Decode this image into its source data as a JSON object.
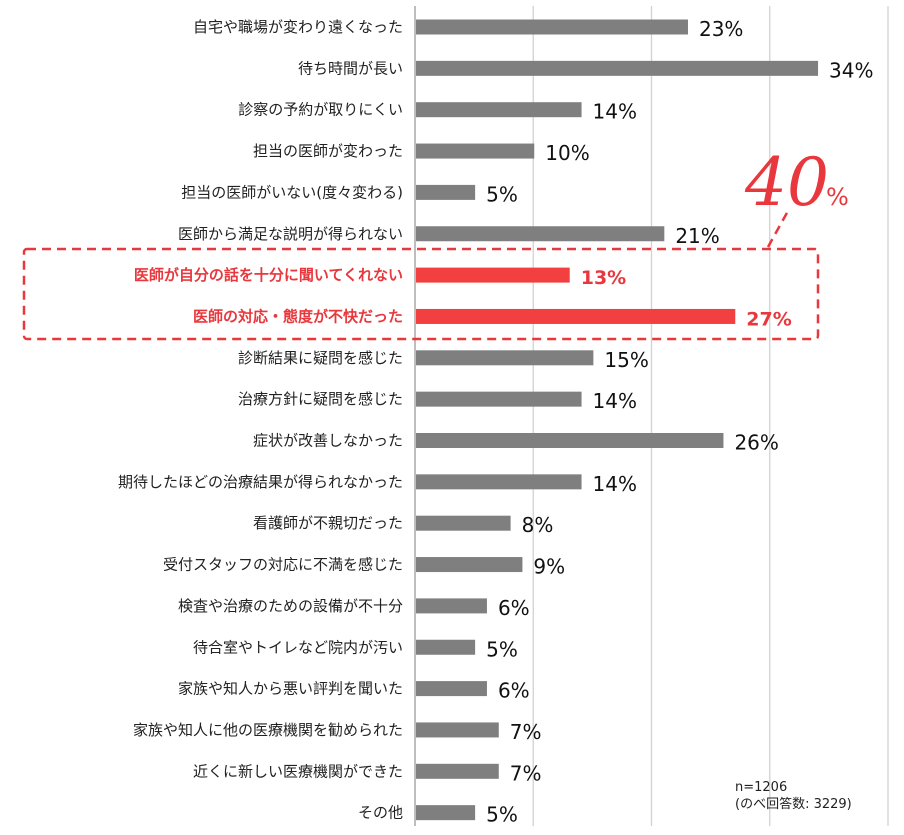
{
  "chart_data": {
    "type": "bar",
    "orientation": "horizontal",
    "categories": [
      "自宅や職場が変わり遠くなった",
      "待ち時間が長い",
      "診察の予約が取りにくい",
      "担当の医師が変わった",
      "担当の医師がいない(度々変わる)",
      "医師から満足な説明が得られない",
      "医師が自分の話を十分に聞いてくれない",
      "医師の対応・態度が不快だった",
      "診断結果に疑問を感じた",
      "治療方針に疑問を感じた",
      "症状が改善しなかった",
      "期待したほどの治療結果が得られなかった",
      "看護師が不親切だった",
      "受付スタッフの対応に不満を感じた",
      "検査や治療のための設備が不十分",
      "待合室やトイレなど院内が汚い",
      "家族や知人から悪い評判を聞いた",
      "家族や知人に他の医療機関を勧められた",
      "近くに新しい医療機関ができた",
      "その他"
    ],
    "values": [
      23,
      34,
      14,
      10,
      5,
      21,
      13,
      27,
      15,
      14,
      26,
      14,
      8,
      9,
      6,
      5,
      6,
      7,
      7,
      5
    ],
    "value_labels": [
      "23%",
      "34%",
      "14%",
      "10%",
      "5%",
      "21%",
      "13%",
      "27%",
      "15%",
      "14%",
      "26%",
      "14%",
      "8%",
      "9%",
      "6%",
      "5%",
      "6%",
      "7%",
      "7%",
      "5%"
    ],
    "highlighted": [
      6,
      7
    ],
    "xlim": [
      0,
      40
    ],
    "grid": true,
    "title": "",
    "xlabel": "",
    "ylabel": "",
    "annotation": {
      "number": "40",
      "unit": "%"
    },
    "note_lines": [
      "n=1206",
      "(のべ回答数: 3229)"
    ],
    "colors": {
      "bar": "#7f7f7f",
      "highlight": "#f24040",
      "highlight_text": "#e8383d",
      "grid": "#d2d2d2"
    }
  }
}
